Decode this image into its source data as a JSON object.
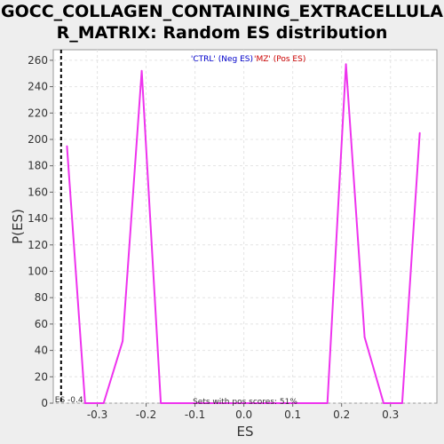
{
  "chart_data": {
    "type": "line",
    "title": "GOCC_COLLAGEN_CONTAINING_EXTRACELLULAR_MATRIX: Random ES distribution",
    "title_lines": [
      "GOCC_COLLAGEN_CONTAINING_EXTRACELLULA",
      "R_MATRIX: Random ES distribution"
    ],
    "xlabel": "ES",
    "ylabel": "P(ES)",
    "xlim": [
      -0.39,
      0.395
    ],
    "ylim": [
      0,
      268
    ],
    "x_ticks": [
      -0.3,
      -0.2,
      -0.1,
      0.0,
      0.1,
      0.2,
      0.3
    ],
    "x_tick_labels": [
      "-0.3",
      "-0.2",
      "-0.1",
      "0.0",
      "0.1",
      "0.2",
      "0.3"
    ],
    "y_ticks": [
      0,
      20,
      40,
      60,
      80,
      100,
      120,
      140,
      160,
      180,
      200,
      220,
      240,
      260
    ],
    "y_tick_labels": [
      "0",
      "20",
      "40",
      "60",
      "80",
      "100",
      "120",
      "140",
      "160",
      "180",
      "200",
      "220",
      "240",
      "260"
    ],
    "grid": true,
    "series": [
      {
        "color": "#ee33ee",
        "x": [
          -0.362,
          -0.325,
          -0.287,
          -0.248,
          -0.209,
          -0.17,
          -0.131,
          -0.092,
          -0.053,
          -0.014,
          0.025,
          0.064,
          0.103,
          0.142,
          0.171,
          0.209,
          0.247,
          0.286,
          0.324,
          0.36
        ],
        "y": [
          195,
          0,
          0,
          47,
          252,
          0,
          0,
          0,
          0,
          0,
          0,
          0,
          0,
          0,
          0,
          257,
          50,
          0,
          0,
          205
        ]
      }
    ],
    "vline": {
      "x": -0.374,
      "style": "dashed",
      "color": "#000000",
      "label": "ES -0.4"
    },
    "legend": {
      "placement": "top-center",
      "neg_label": "'CTRL' (Neg ES)",
      "neg_color": "#0000cc",
      "pos_label": "'MZ' (Pos ES)",
      "pos_color": "#cc0000"
    },
    "annotation": "Sets with pos scores: 51%"
  }
}
